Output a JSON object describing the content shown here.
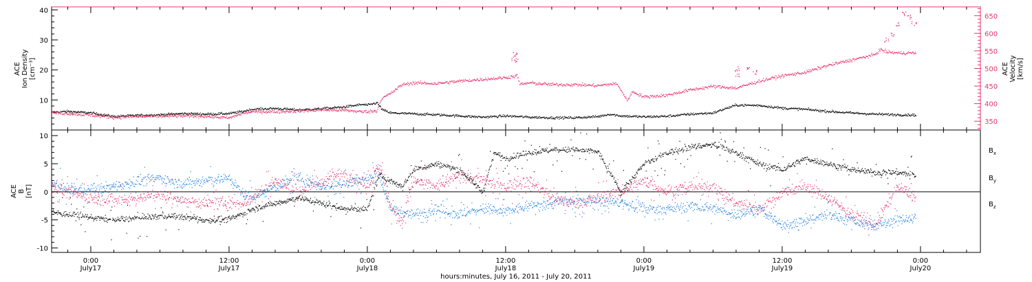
{
  "colors": {
    "black": "#000000",
    "pink": "#e8336b",
    "blue": "#1e7fe0",
    "frame": "#000000"
  },
  "chart_data": [
    {
      "type": "scatter",
      "panel": "top",
      "left_axis": {
        "label_lines": [
          "ACE",
          "Ion Density",
          "[cm⁻³]"
        ],
        "ylim": [
          0,
          41
        ],
        "ticks": [
          10,
          20,
          30,
          40
        ],
        "tick_labels": [
          "10",
          "20",
          "30",
          "40"
        ]
      },
      "right_axis": {
        "label_lines": [
          "ACE",
          "Velocity",
          "[km/s]"
        ],
        "ylim": [
          325,
          675
        ],
        "ticks": [
          350,
          400,
          450,
          500,
          550,
          600,
          650
        ],
        "tick_labels": [
          "350",
          "400",
          "450",
          "500",
          "550",
          "600",
          "650"
        ],
        "color": "pink"
      },
      "series": [
        {
          "name": "Ion Density",
          "axis": "left",
          "color": "black",
          "x_hours": [
            -3.4,
            -2,
            0,
            2,
            4,
            6,
            8,
            10,
            12,
            13,
            14,
            16,
            18,
            20,
            22,
            23.5,
            24,
            24.8,
            25.3,
            26,
            28,
            30,
            32,
            34,
            36,
            38,
            40,
            42,
            44,
            45,
            46,
            48,
            50,
            52,
            54,
            55,
            56,
            58,
            60,
            62,
            64,
            66,
            68,
            70,
            71.6
          ],
          "y": [
            6,
            6.3,
            5.8,
            4.6,
            5,
            5.2,
            5.6,
            5.4,
            5.6,
            6.2,
            7,
            7.3,
            6.8,
            7.2,
            7.8,
            8.6,
            8.4,
            9.2,
            6.8,
            5.8,
            5.5,
            5.2,
            4.8,
            4.4,
            4.8,
            4.4,
            4.2,
            4.2,
            4.6,
            5.4,
            4.8,
            4.5,
            4.7,
            5.4,
            5.8,
            7.2,
            8.4,
            8.3,
            7.4,
            7,
            6.3,
            5.8,
            5.4,
            5.2,
            5.1
          ]
        },
        {
          "name": "Velocity",
          "axis": "right",
          "color": "pink",
          "x_hours": [
            -3.4,
            -2,
            0,
            2,
            4,
            6,
            8,
            10,
            12,
            13,
            14,
            16,
            18,
            20,
            22,
            23.5,
            24.8,
            25.2,
            26,
            27,
            28,
            30,
            32,
            34,
            36,
            37,
            37.2,
            38,
            40,
            42,
            44,
            45.5,
            45.8,
            46.5,
            47,
            48,
            50,
            52,
            54,
            56,
            58,
            60,
            62,
            64,
            66,
            68,
            68.5,
            69,
            70,
            71.6
          ],
          "y": [
            375,
            373,
            368,
            362,
            364,
            365,
            366,
            365,
            360,
            372,
            378,
            378,
            380,
            383,
            382,
            378,
            380,
            415,
            430,
            455,
            460,
            458,
            465,
            470,
            475,
            480,
            455,
            460,
            455,
            455,
            452,
            458,
            450,
            410,
            435,
            420,
            425,
            440,
            450,
            445,
            465,
            480,
            490,
            510,
            525,
            540,
            555,
            548,
            545,
            545
          ]
        },
        {
          "name": "Velocity spikes",
          "axis": "right",
          "color": "pink",
          "x_hours": [
            36.7,
            36.8,
            36.9,
            56.0,
            56.1,
            57.0,
            57.6,
            69.0,
            69.5,
            70.0,
            70.5,
            71.0,
            71.4
          ],
          "y": [
            530,
            545,
            520,
            500,
            485,
            500,
            490,
            580,
            600,
            625,
            660,
            650,
            630
          ]
        }
      ]
    },
    {
      "type": "scatter",
      "panel": "bottom",
      "left_axis": {
        "label_lines": [
          "ACE",
          "B",
          "[nT]"
        ],
        "ylim": [
          -10.8,
          11
        ],
        "ticks": [
          -10,
          -5,
          0,
          5,
          10
        ],
        "tick_labels": [
          "-10",
          "-5",
          "0",
          "5",
          "10"
        ],
        "zero_line": true
      },
      "series": [
        {
          "name": "Bx",
          "color": "black",
          "x_hours": [
            -3.4,
            -2,
            0,
            2,
            4,
            6,
            8,
            10,
            12,
            13,
            14,
            16,
            18,
            20,
            22,
            24,
            25,
            26,
            27,
            28,
            30,
            32,
            34,
            35,
            36,
            38,
            40,
            42,
            44,
            46,
            48,
            50,
            52,
            54,
            56,
            58,
            60,
            62,
            64,
            66,
            68,
            70,
            71.6
          ],
          "y": [
            -3.5,
            -4,
            -4.5,
            -5,
            -4.6,
            -4.3,
            -4.4,
            -5,
            -4.8,
            -4,
            -3,
            -2,
            -1,
            -2,
            -3,
            -3,
            3,
            2,
            1,
            4,
            5,
            4,
            0,
            7,
            6,
            7,
            7.5,
            7.5,
            7.2,
            0,
            5,
            7,
            8,
            8.5,
            7,
            5,
            4,
            6,
            5,
            4,
            3.5,
            3.5,
            3
          ]
        },
        {
          "name": "By",
          "color": "blue",
          "x_hours": [
            -3.4,
            -2,
            0,
            2,
            4,
            6,
            8,
            10,
            12,
            13,
            14,
            16,
            18,
            20,
            22,
            24,
            25,
            26,
            28,
            30,
            32,
            34,
            36,
            38,
            40,
            42,
            44,
            46,
            48,
            50,
            52,
            54,
            56,
            58,
            60,
            62,
            64,
            66,
            68,
            70,
            71.6
          ],
          "y": [
            1.5,
            0.5,
            0.5,
            1,
            2,
            2.5,
            1.5,
            2,
            2.5,
            0,
            -1,
            1,
            2.5,
            1,
            1.5,
            2.5,
            3,
            -3,
            -4,
            -3,
            -4,
            -3,
            -3.5,
            -2.5,
            -2,
            -1.5,
            -1.5,
            -2,
            -3,
            -3,
            -2.5,
            -3,
            -4,
            -3,
            -6,
            -5,
            -4,
            -5,
            -6,
            -5,
            -4.5
          ]
        },
        {
          "name": "Bz",
          "color": "pink",
          "x_hours": [
            -3.4,
            -2,
            0,
            2,
            4,
            6,
            8,
            10,
            12,
            13,
            14,
            16,
            18,
            20,
            22,
            24,
            25,
            26,
            27,
            28,
            30,
            32,
            34,
            36,
            38,
            40,
            42,
            44,
            46,
            48,
            50,
            52,
            54,
            56,
            58,
            60,
            62,
            64,
            66,
            68,
            70,
            71.6
          ],
          "y": [
            1.2,
            0,
            -1,
            -1.5,
            -1,
            -0.5,
            -1.5,
            -2,
            -2,
            -2,
            -1,
            2,
            0,
            2,
            3.5,
            1,
            5,
            -3,
            -5,
            2,
            1,
            3,
            2,
            1,
            2,
            -1,
            -2,
            -1,
            0,
            2,
            0,
            1,
            1,
            -2,
            -3,
            0,
            1,
            -1,
            -4,
            -6,
            1,
            -1
          ]
        }
      ],
      "legend": [
        {
          "base": "B",
          "sub": "x",
          "color": "black"
        },
        {
          "base": "B",
          "sub": "y",
          "color": "blue"
        },
        {
          "base": "B",
          "sub": "z",
          "color": "pink"
        }
      ]
    }
  ],
  "x_axis": {
    "range_hours": [
      -3.4,
      77.2
    ],
    "major_ticks": [
      {
        "hours": 0,
        "line1": "0:00",
        "line2": "July17"
      },
      {
        "hours": 12,
        "line1": "12:00",
        "line2": "July17"
      },
      {
        "hours": 24,
        "line1": "0:00",
        "line2": "July18"
      },
      {
        "hours": 36,
        "line1": "12:00",
        "line2": "July18"
      },
      {
        "hours": 48,
        "line1": "0:00",
        "line2": "July19"
      },
      {
        "hours": 60,
        "line1": "12:00",
        "line2": "July19"
      },
      {
        "hours": 72,
        "line1": "0:00",
        "line2": "July20"
      }
    ],
    "minor_tick_every_hours": 2,
    "title": "hours:minutes, July 16, 2011 - July 20, 2011"
  }
}
